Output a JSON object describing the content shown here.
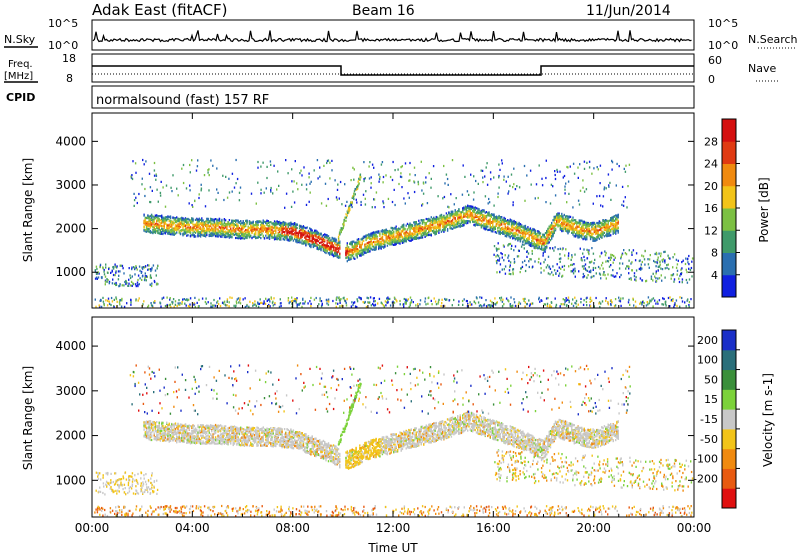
{
  "header": {
    "station": "Adak East (fitACF)",
    "beam": "Beam 16",
    "date": "11/Jun/2014"
  },
  "top_panels": {
    "nsky_label": "N.Sky",
    "nsky_ticks": [
      "10^5",
      "10^0"
    ],
    "nsearch_label": "N.Search",
    "nsearch_ticks": [
      "10^5",
      "10^0"
    ],
    "freq_label": "Freq.",
    "freq_unit": "[MHz]",
    "freq_ticks": [
      "18",
      "8"
    ],
    "nave_label": "Nave",
    "nave_ticks": [
      "60",
      "0"
    ],
    "cpid_label": "CPID",
    "cpid_value": "normalsound (fast) 157 RF"
  },
  "chart_data": [
    {
      "type": "heatmap",
      "panel": "power",
      "ylabel": "Slant Range [km]",
      "xlabel": "",
      "ylim": [
        180,
        4650
      ],
      "xlim": [
        0,
        24
      ],
      "x_ticks": [
        "00:00",
        "04:00",
        "08:00",
        "12:00",
        "16:00",
        "20:00",
        "00:00"
      ],
      "y_ticks": [
        1000,
        2000,
        3000,
        4000
      ],
      "colorbar": {
        "label": "Power [dB]",
        "ticks": [
          4,
          8,
          12,
          16,
          20,
          24,
          28
        ],
        "range": [
          0,
          32
        ],
        "colors": [
          "#1020e0",
          "#2a6fb0",
          "#3f9a6a",
          "#7cc043",
          "#f2c419",
          "#f08a0f",
          "#e03a12",
          "#d40f0f"
        ]
      },
      "echo_band_center_km": {
        "x_hours": [
          2.0,
          3.0,
          4.0,
          5.0,
          6.0,
          7.0,
          8.0,
          9.0,
          9.8,
          10.0,
          10.5,
          11.0,
          12.0,
          13.0,
          14.0,
          15.0,
          16.0,
          17.0,
          18.0,
          18.5,
          19.0,
          19.5,
          20.0,
          21.0
        ],
        "y_km": [
          2150,
          2100,
          2050,
          2050,
          2000,
          2000,
          1950,
          1750,
          1550,
          1450,
          1550,
          1700,
          1850,
          2000,
          2150,
          2350,
          2150,
          1950,
          1700,
          2200,
          2100,
          2000,
          1950,
          2150
        ]
      }
    },
    {
      "type": "heatmap",
      "panel": "velocity",
      "ylabel": "Slant Range [km]",
      "xlabel": "Time UT",
      "ylim": [
        180,
        4650
      ],
      "xlim": [
        0,
        24
      ],
      "x_ticks": [
        "00:00",
        "04:00",
        "08:00",
        "12:00",
        "16:00",
        "20:00",
        "00:00"
      ],
      "y_ticks": [
        1000,
        2000,
        3000,
        4000
      ],
      "colorbar": {
        "label": "Velocity [m s-1]",
        "ticks": [
          200,
          100,
          50,
          15,
          -15,
          -50,
          -100,
          -200
        ],
        "colors": [
          "#1a2fc8",
          "#2a6f7a",
          "#3a8f3a",
          "#7cd23a",
          "#c8c8c8",
          "#f2c419",
          "#f08a0f",
          "#e85a10",
          "#e01010"
        ]
      }
    }
  ]
}
